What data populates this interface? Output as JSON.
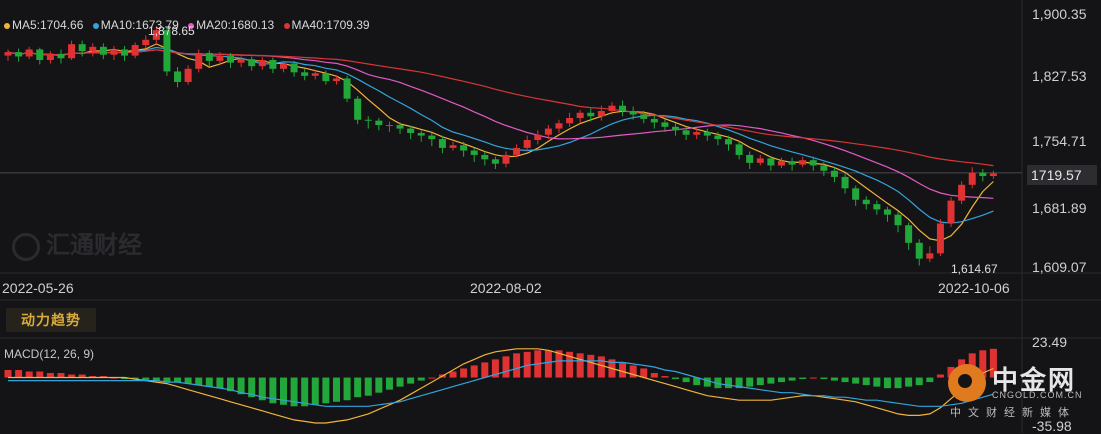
{
  "chart_data": {
    "type": "candlestick",
    "price_axis": {
      "ticks": [
        "1,900.35",
        "1,827.53",
        "1,754.71",
        "1,681.89",
        "1,609.07"
      ],
      "current_price_label": "1719.57",
      "current_price": 1719.57,
      "ylim": [
        1609.07,
        1900.35
      ]
    },
    "date_axis": [
      "2022-05-26",
      "2022-08-02",
      "2022-10-06"
    ],
    "legend": [
      {
        "label": "MA5:1704.66",
        "color": "#f0b43a"
      },
      {
        "label": "MA10:1673.79",
        "color": "#33a3dc"
      },
      {
        "label": "MA20:1680.13",
        "color": "#e25ac6"
      },
      {
        "label": "MA40:1709.39",
        "color": "#d93636"
      }
    ],
    "annotations": {
      "high_label": "1,878.65",
      "high_value": 1878.65,
      "low_label": "1,614.67",
      "low_value": 1614.67
    },
    "candles": [
      [
        1853,
        1857,
        1847,
        1860
      ],
      [
        1857,
        1852,
        1846,
        1861
      ],
      [
        1852,
        1860,
        1849,
        1863
      ],
      [
        1860,
        1848,
        1843,
        1862
      ],
      [
        1848,
        1855,
        1844,
        1858
      ],
      [
        1855,
        1850,
        1844,
        1860
      ],
      [
        1850,
        1866,
        1848,
        1870
      ],
      [
        1866,
        1858,
        1852,
        1870
      ],
      [
        1858,
        1863,
        1852,
        1867
      ],
      [
        1863,
        1854,
        1849,
        1867
      ],
      [
        1854,
        1860,
        1848,
        1864
      ],
      [
        1860,
        1853,
        1847,
        1864
      ],
      [
        1853,
        1865,
        1850,
        1868
      ],
      [
        1865,
        1871,
        1861,
        1876
      ],
      [
        1871,
        1882,
        1866,
        1886
      ],
      [
        1882,
        1835,
        1830,
        1885
      ],
      [
        1835,
        1823,
        1817,
        1840
      ],
      [
        1823,
        1838,
        1820,
        1842
      ],
      [
        1838,
        1856,
        1834,
        1860
      ],
      [
        1856,
        1847,
        1840,
        1859
      ],
      [
        1847,
        1853,
        1842,
        1857
      ],
      [
        1853,
        1845,
        1839,
        1856
      ],
      [
        1845,
        1849,
        1840,
        1852
      ],
      [
        1849,
        1841,
        1836,
        1852
      ],
      [
        1841,
        1848,
        1837,
        1851
      ],
      [
        1848,
        1838,
        1833,
        1851
      ],
      [
        1838,
        1844,
        1834,
        1847
      ],
      [
        1844,
        1834,
        1829,
        1847
      ],
      [
        1834,
        1830,
        1825,
        1838
      ],
      [
        1830,
        1833,
        1826,
        1837
      ],
      [
        1833,
        1824,
        1820,
        1836
      ],
      [
        1824,
        1827,
        1820,
        1831
      ],
      [
        1827,
        1804,
        1800,
        1830
      ],
      [
        1804,
        1780,
        1775,
        1807
      ],
      [
        1780,
        1779,
        1770,
        1784
      ],
      [
        1779,
        1774,
        1768,
        1782
      ],
      [
        1774,
        1774,
        1766,
        1778
      ],
      [
        1774,
        1770,
        1764,
        1777
      ],
      [
        1770,
        1765,
        1758,
        1773
      ],
      [
        1765,
        1762,
        1755,
        1768
      ],
      [
        1762,
        1758,
        1750,
        1765
      ],
      [
        1758,
        1748,
        1742,
        1762
      ],
      [
        1748,
        1751,
        1745,
        1755
      ],
      [
        1751,
        1745,
        1738,
        1755
      ],
      [
        1745,
        1740,
        1732,
        1748
      ],
      [
        1740,
        1735,
        1728,
        1744
      ],
      [
        1735,
        1730,
        1724,
        1738
      ],
      [
        1730,
        1740,
        1726,
        1744
      ],
      [
        1740,
        1748,
        1737,
        1752
      ],
      [
        1748,
        1757,
        1744,
        1762
      ],
      [
        1757,
        1763,
        1752,
        1768
      ],
      [
        1763,
        1770,
        1758,
        1774
      ],
      [
        1770,
        1776,
        1765,
        1780
      ],
      [
        1776,
        1782,
        1772,
        1788
      ],
      [
        1782,
        1788,
        1776,
        1791
      ],
      [
        1788,
        1784,
        1778,
        1793
      ],
      [
        1784,
        1790,
        1779,
        1796
      ],
      [
        1790,
        1796,
        1786,
        1800
      ],
      [
        1796,
        1790,
        1784,
        1802
      ],
      [
        1790,
        1786,
        1780,
        1795
      ],
      [
        1786,
        1781,
        1776,
        1790
      ],
      [
        1781,
        1777,
        1770,
        1785
      ],
      [
        1777,
        1772,
        1766,
        1781
      ],
      [
        1772,
        1768,
        1762,
        1776
      ],
      [
        1768,
        1763,
        1757,
        1772
      ],
      [
        1763,
        1766,
        1758,
        1771
      ],
      [
        1766,
        1762,
        1756,
        1770
      ],
      [
        1762,
        1758,
        1751,
        1766
      ],
      [
        1758,
        1752,
        1745,
        1762
      ],
      [
        1752,
        1740,
        1735,
        1756
      ],
      [
        1740,
        1731,
        1724,
        1744
      ],
      [
        1731,
        1736,
        1728,
        1740
      ],
      [
        1736,
        1728,
        1722,
        1739
      ],
      [
        1728,
        1733,
        1725,
        1737
      ],
      [
        1733,
        1729,
        1722,
        1737
      ],
      [
        1729,
        1734,
        1726,
        1738
      ],
      [
        1734,
        1728,
        1722,
        1738
      ],
      [
        1728,
        1722,
        1716,
        1732
      ],
      [
        1722,
        1715,
        1709,
        1726
      ],
      [
        1715,
        1702,
        1696,
        1719
      ],
      [
        1702,
        1689,
        1682,
        1705
      ],
      [
        1689,
        1684,
        1678,
        1693
      ],
      [
        1684,
        1678,
        1672,
        1688
      ],
      [
        1678,
        1672,
        1664,
        1681
      ],
      [
        1672,
        1660,
        1652,
        1676
      ],
      [
        1660,
        1640,
        1632,
        1663
      ],
      [
        1640,
        1622,
        1614,
        1644
      ],
      [
        1622,
        1628,
        1618,
        1636
      ],
      [
        1628,
        1662,
        1625,
        1667
      ],
      [
        1662,
        1688,
        1658,
        1692
      ],
      [
        1688,
        1706,
        1684,
        1710
      ],
      [
        1706,
        1720,
        1702,
        1726
      ],
      [
        1720,
        1716,
        1710,
        1724
      ],
      [
        1716,
        1719,
        1713,
        1722
      ]
    ],
    "macd": {
      "label": "MACD(12, 26, 9)",
      "ticks": [
        "23.49",
        "-35.98"
      ],
      "ylim": [
        -35.98,
        23.49
      ],
      "hist": [
        5,
        5,
        4,
        4,
        3,
        3,
        2,
        2,
        1,
        1,
        0,
        -1,
        -1,
        -2,
        -2,
        -3,
        -3,
        -4,
        -5,
        -6,
        -7,
        -9,
        -11,
        -13,
        -15,
        -17,
        -18,
        -19,
        -19,
        -18,
        -17,
        -16,
        -15,
        -13,
        -12,
        -10,
        -8,
        -6,
        -4,
        -2,
        0,
        2,
        4,
        6,
        8,
        10,
        12,
        14,
        16,
        17,
        18,
        18,
        18,
        17,
        16,
        15,
        14,
        12,
        10,
        8,
        6,
        3,
        1,
        -1,
        -3,
        -5,
        -6,
        -7,
        -7,
        -7,
        -6,
        -5,
        -4,
        -3,
        -2,
        -1,
        0,
        -1,
        -2,
        -3,
        -4,
        -5,
        -6,
        -7,
        -7,
        -6,
        -5,
        -3,
        2,
        7,
        12,
        16,
        18,
        19
      ],
      "dif": [
        0,
        0,
        0,
        0,
        0,
        0,
        0,
        0,
        0,
        0,
        0,
        0,
        -1,
        -2,
        -3,
        -4,
        -6,
        -8,
        -10,
        -12,
        -14,
        -16,
        -18,
        -20,
        -22,
        -24,
        -26,
        -28,
        -29,
        -30,
        -30,
        -29,
        -28,
        -26,
        -24,
        -21,
        -18,
        -15,
        -11,
        -7,
        -3,
        1,
        5,
        9,
        12,
        15,
        17,
        18,
        19,
        19,
        19,
        18,
        16,
        14,
        12,
        10,
        8,
        6,
        4,
        2,
        0,
        -2,
        -4,
        -6,
        -8,
        -10,
        -12,
        -13,
        -14,
        -15,
        -15,
        -15,
        -15,
        -14,
        -13,
        -12,
        -12,
        -13,
        -14,
        -15,
        -16,
        -18,
        -20,
        -22,
        -24,
        -25,
        -25,
        -24,
        -20,
        -14,
        -8,
        -2,
        3,
        6
      ],
      "dea": [
        -2,
        -2,
        -2,
        -2,
        -2,
        -2,
        -2,
        -2,
        -2,
        -2,
        -2,
        -2,
        -2,
        -2,
        -2,
        -3,
        -3,
        -4,
        -5,
        -6,
        -7,
        -8,
        -10,
        -11,
        -13,
        -14,
        -15,
        -16,
        -17,
        -18,
        -19,
        -19,
        -19,
        -19,
        -19,
        -18,
        -17,
        -16,
        -14,
        -12,
        -10,
        -8,
        -6,
        -4,
        -2,
        0,
        2,
        4,
        6,
        8,
        9,
        10,
        11,
        11,
        11,
        11,
        11,
        10,
        10,
        9,
        8,
        7,
        5,
        4,
        2,
        0,
        -2,
        -4,
        -5,
        -6,
        -7,
        -8,
        -9,
        -10,
        -10,
        -11,
        -12,
        -12,
        -13,
        -13,
        -14,
        -15,
        -15,
        -16,
        -17,
        -18,
        -19,
        -19,
        -19,
        -18,
        -17,
        -15,
        -13,
        -11
      ]
    }
  },
  "brand": {
    "watermark": "汇通财经",
    "logo_name": "中金网",
    "logo_url": "CNGOLD.COM.CN",
    "logo_sub": "中文财经新媒体"
  },
  "toolbar": {
    "trend_button": "动力趋势"
  }
}
